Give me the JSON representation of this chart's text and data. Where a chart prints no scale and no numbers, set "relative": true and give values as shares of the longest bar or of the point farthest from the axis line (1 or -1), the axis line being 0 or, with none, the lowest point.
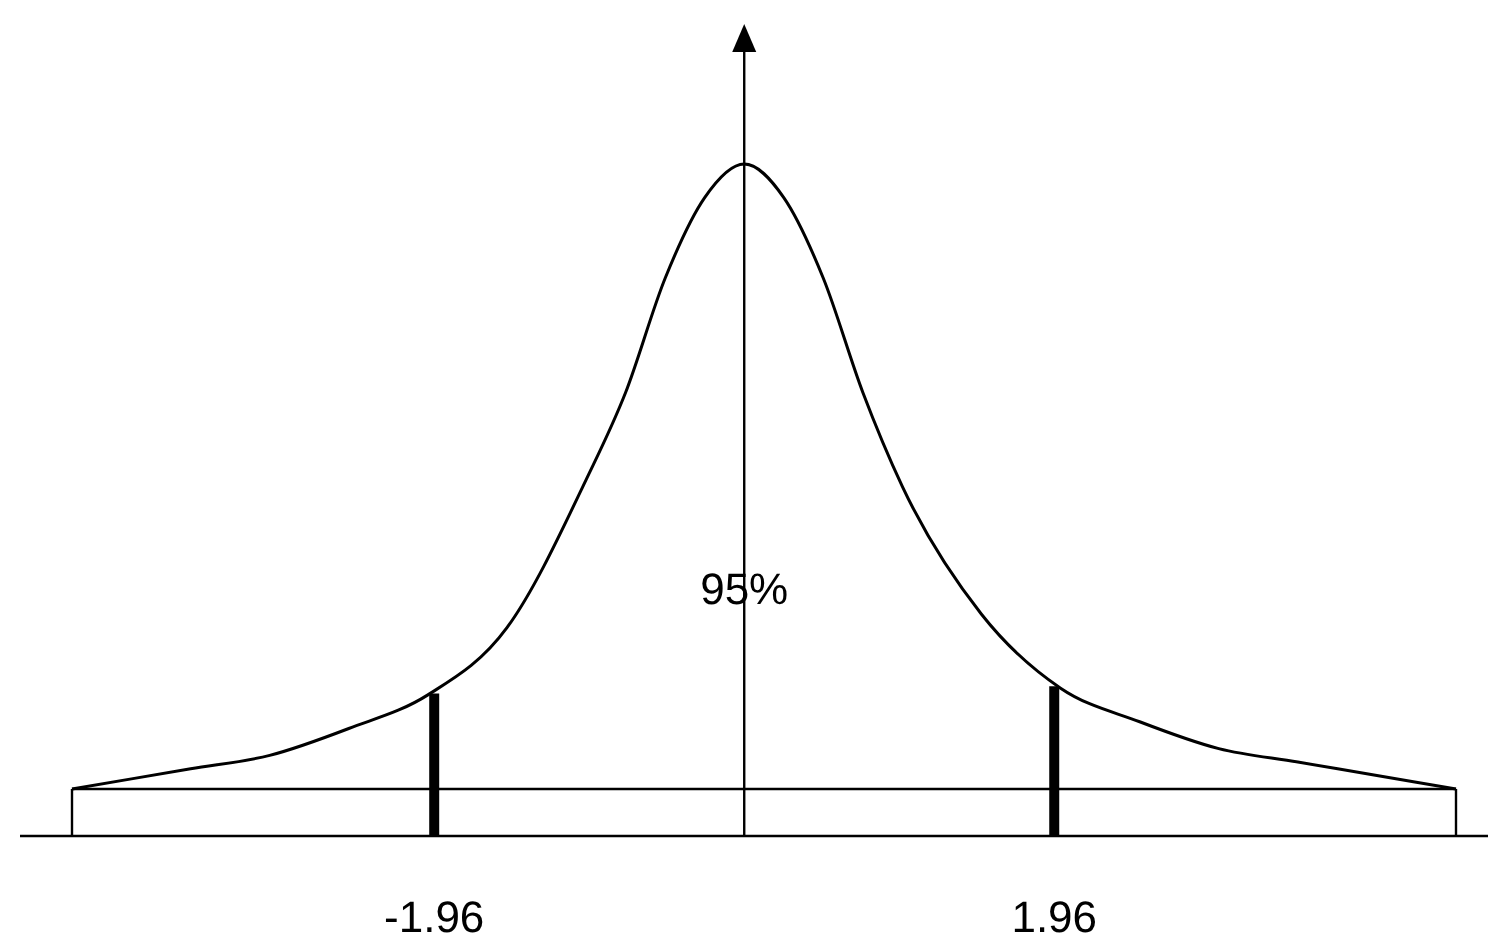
{
  "chart_data": {
    "type": "line",
    "relative": true,
    "x": [
      -4.25,
      -3.5,
      -3,
      -2.5,
      -2,
      -1.5,
      -1,
      -0.75,
      -0.5,
      -0.25,
      0,
      0.25,
      0.5,
      0.75,
      1,
      1.5,
      2,
      2.5,
      3,
      3.5,
      4,
      4.5
    ],
    "series": [
      {
        "color": "#000000",
        "values": [
          0.07,
          0.1,
          0.12,
          0.16,
          0.21,
          0.31,
          0.53,
          0.66,
          0.83,
          0.95,
          1,
          0.95,
          0.83,
          0.66,
          0.52,
          0.33,
          0.22,
          0.17,
          0.13,
          0.11,
          0.09,
          0.07
        ]
      }
    ],
    "xlim": [
      -4.25,
      4.5
    ],
    "xticks": [
      {
        "value": -1.96,
        "label": "-1.96"
      },
      {
        "value": 1.96,
        "label": "1.96"
      }
    ],
    "ref_lines": [
      {
        "axis": "x",
        "value": -1.96,
        "color": "#000000"
      },
      {
        "axis": "x",
        "value": 1.96,
        "color": "#000000"
      },
      {
        "axis": "y",
        "value": 0.07,
        "color": "#000000"
      }
    ],
    "annotations": [
      "95%"
    ],
    "grid": false,
    "marker": "none",
    "line_style": "solid"
  }
}
